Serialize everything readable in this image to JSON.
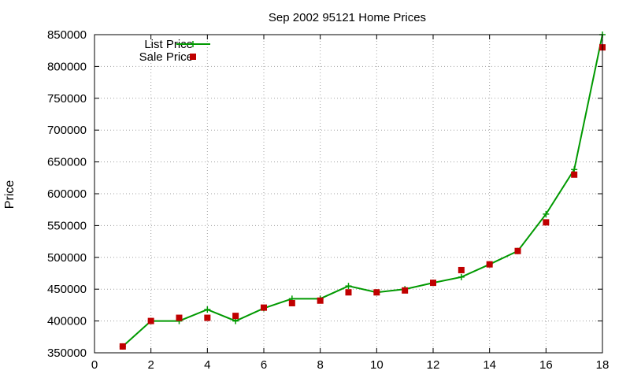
{
  "chart_data": {
    "type": "line",
    "title": "Sep 2002 95121 Home Prices",
    "xlabel": "",
    "ylabel": "Price",
    "xlim": [
      0,
      18
    ],
    "ylim": [
      350000,
      850000
    ],
    "xticks": [
      "0",
      "2",
      "4",
      "6",
      "8",
      "10",
      "12",
      "14",
      "16",
      "18"
    ],
    "yticks": [
      "350000",
      "400000",
      "450000",
      "500000",
      "550000",
      "600000",
      "650000",
      "700000",
      "750000",
      "800000",
      "850000"
    ],
    "grid": true,
    "legend_position": "top-left",
    "x": [
      1,
      2,
      3,
      4,
      5,
      6,
      7,
      8,
      9,
      10,
      11,
      12,
      13,
      14,
      15,
      16,
      17,
      18
    ],
    "series": [
      {
        "name": "List Price",
        "style": "line+cross",
        "color": "#009900",
        "values": [
          360000,
          400000,
          400000,
          418000,
          400000,
          420000,
          435000,
          435000,
          455000,
          445000,
          450000,
          460000,
          469000,
          489000,
          510000,
          568000,
          638000,
          850000
        ]
      },
      {
        "name": "Sale Price",
        "style": "square-points",
        "color": "#c00000",
        "values": [
          360000,
          400000,
          405000,
          405000,
          408000,
          421000,
          428000,
          432000,
          445000,
          445000,
          448000,
          460000,
          480000,
          489000,
          510000,
          555000,
          630000,
          830000
        ]
      }
    ]
  }
}
